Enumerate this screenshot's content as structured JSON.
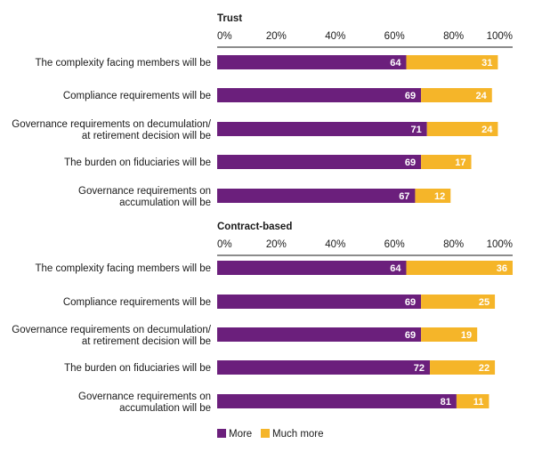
{
  "chart_data": [
    {
      "type": "bar",
      "orientation": "horizontal",
      "stacked": true,
      "title": "Trust",
      "categories": [
        [
          "The complexity facing members will be"
        ],
        [
          "Compliance requirements will be"
        ],
        [
          "Governance requirements on decumulation/",
          "at retirement decision will be"
        ],
        [
          "The burden on fiduciaries will be"
        ],
        [
          "Governance requirements on",
          "accumulation will be"
        ]
      ],
      "series": [
        {
          "name": "More",
          "values": [
            64,
            69,
            71,
            69,
            67
          ]
        },
        {
          "name": "Much more",
          "values": [
            31,
            24,
            24,
            17,
            12
          ]
        }
      ],
      "xticks": [
        "0%",
        "20%",
        "40%",
        "60%",
        "80%",
        "100%"
      ],
      "xlim": [
        0,
        100
      ]
    },
    {
      "type": "bar",
      "orientation": "horizontal",
      "stacked": true,
      "title": "Contract-based",
      "categories": [
        [
          "The complexity facing members will be"
        ],
        [
          "Compliance requirements will be"
        ],
        [
          "Governance requirements on decumulation/",
          "at retirement decision will be"
        ],
        [
          "The burden on fiduciaries will be"
        ],
        [
          "Governance requirements on",
          "accumulation will be"
        ]
      ],
      "series": [
        {
          "name": "More",
          "values": [
            64,
            69,
            69,
            72,
            81
          ]
        },
        {
          "name": "Much more",
          "values": [
            36,
            25,
            19,
            22,
            11
          ]
        }
      ],
      "xticks": [
        "0%",
        "20%",
        "40%",
        "60%",
        "80%",
        "100%"
      ],
      "xlim": [
        0,
        100
      ]
    }
  ],
  "legend": {
    "placement": "bottom",
    "items": [
      {
        "label": "More",
        "color": "#6b1f7c"
      },
      {
        "label": "Much more",
        "color": "#f5b529"
      }
    ]
  },
  "colors": {
    "more": "#6b1f7c",
    "much_more": "#f5b529",
    "axis": "#1a1a1a"
  }
}
